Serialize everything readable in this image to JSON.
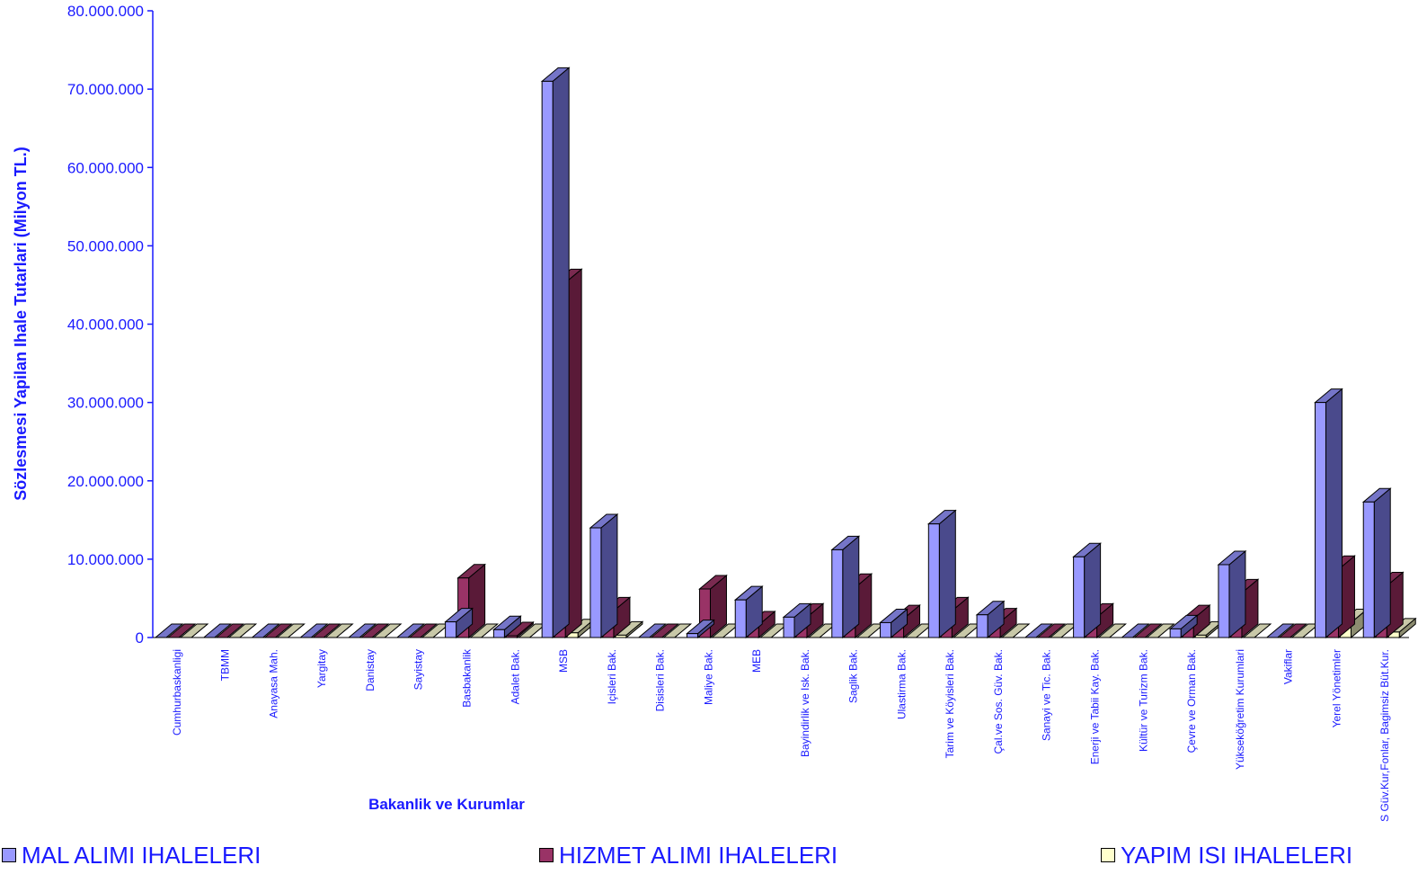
{
  "chart_data": {
    "type": "bar",
    "title": "",
    "ylabel": "Sözlesmesi Yapilan  Ihale Tutarlari      (Milyon TL.)",
    "xlabel": "Bakanlik ve Kurumlar",
    "ylim": [
      0,
      80000000
    ],
    "yticks": [
      "0",
      "10.000.000",
      "20.000.000",
      "30.000.000",
      "40.000.000",
      "50.000.000",
      "60.000.000",
      "70.000.000",
      "80.000.000"
    ],
    "categories": [
      "Cumhurbaskanligi",
      "TBMM",
      "Anayasa Mah.",
      "Yargitay",
      "Danistay",
      "Sayistay",
      "Basbakanlik",
      "Adalet Bak.",
      "MSB",
      "Içisleri Bak.",
      "Disisleri Bak.",
      "Maliye Bak.",
      "MEB",
      "Bayindirlik ve Isk. Bak.",
      "Saglik Bak.",
      "Ulastirma Bak.",
      "Tarim ve Köyisleri Bak.",
      "Çal.ve Sos. Güv. Bak.",
      "Sanayi ve Tic. Bak.",
      "Enerji ve Tabii Kay. Bak.",
      "Kültür ve Turizm Bak.",
      "Çevre ve Orman Bak.",
      "Yükseköğretim Kurumlari",
      "Vakiflar",
      "Yerel Yönetimler",
      "S Güv.Kur,Fonlar, Bagimsiz Büt.Kur."
    ],
    "series": [
      {
        "name": "MAL ALIMI IHALELERI",
        "values": [
          0,
          0,
          0,
          0,
          0,
          0,
          2000000,
          1000000,
          71000000,
          14000000,
          0,
          500000,
          4800000,
          2600000,
          11200000,
          1900000,
          14500000,
          2900000,
          0,
          10300000,
          0,
          1100000,
          9300000,
          0,
          30000000,
          17300000
        ]
      },
      {
        "name": "HIZMET ALIMI IHALELERI",
        "values": [
          0,
          0,
          0,
          0,
          0,
          0,
          7600000,
          100000,
          45300000,
          3400000,
          0,
          6200000,
          1600000,
          2600000,
          6400000,
          2400000,
          3400000,
          2000000,
          0,
          2600000,
          0,
          2400000,
          5700000,
          0,
          8700000,
          6600000
        ]
      },
      {
        "name": "YAPIM ISI IHALELERI",
        "values": [
          0,
          0,
          0,
          0,
          0,
          0,
          0,
          0,
          600000,
          300000,
          0,
          0,
          0,
          0,
          0,
          0,
          0,
          0,
          0,
          0,
          0,
          300000,
          0,
          0,
          1900000,
          700000
        ]
      }
    ],
    "legend_position": "bottom",
    "grid": false,
    "colors": {
      "mal_front": "#9999ff",
      "mal_side": "#4a4a8c",
      "mal_top": "#7575c8",
      "hizmet_front": "#993366",
      "hizmet_side": "#5a1a38",
      "hizmet_top": "#7a2a50",
      "yapim_front": "#ffffcc",
      "yapim_side": "#8c8c70",
      "yapim_top": "#c8c8a8",
      "text": "#1a1aff"
    }
  }
}
